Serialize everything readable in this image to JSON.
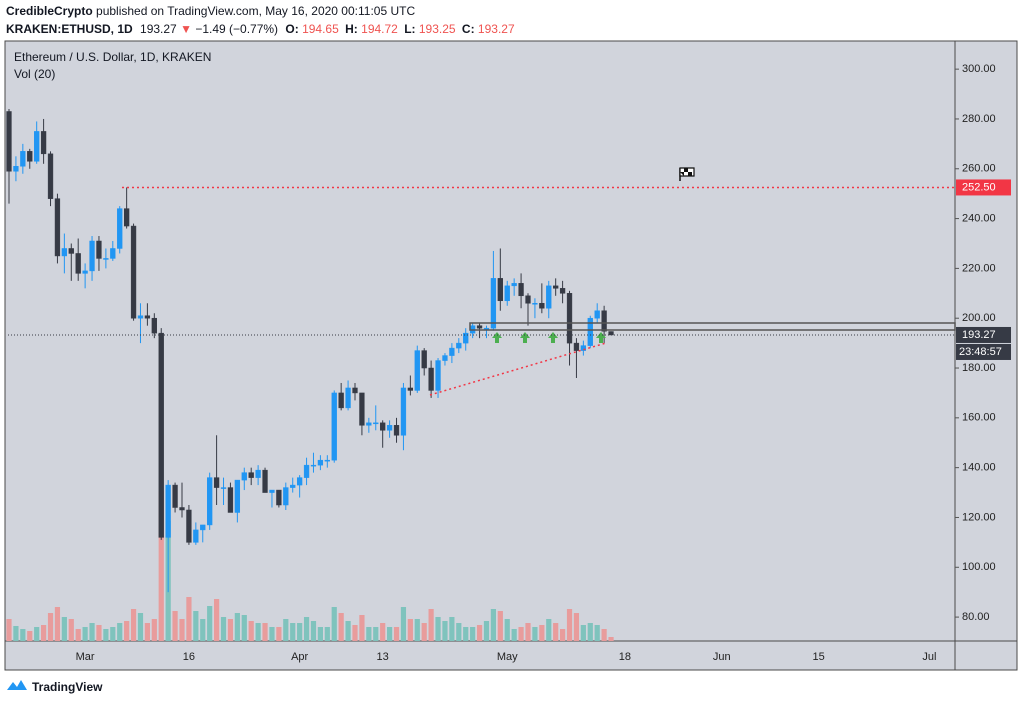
{
  "header": {
    "author": "CredibleCrypto",
    "published": "published on TradingView.com, May 16, 2020 00:11:05 UTC",
    "symbol": "KRAKEN:ETHUSD, 1D",
    "last": 193.27,
    "arrow": "▼",
    "change": "−1.49 (−0.77%)",
    "fields": [
      {
        "label": "O:",
        "value": 194.65
      },
      {
        "label": "H:",
        "value": 194.72
      },
      {
        "label": "L:",
        "value": 193.25
      },
      {
        "label": "C:",
        "value": 193.27
      }
    ]
  },
  "footer": {
    "brand": "TradingView"
  },
  "chart_data": {
    "type": "candlestick",
    "title": "Ethereum / U.S. Dollar, 1D, KRAKEN",
    "categories": [
      null,
      null,
      null,
      null,
      null,
      null,
      null,
      null,
      null,
      null,
      null,
      "Mar",
      null,
      null,
      null,
      null,
      null,
      null,
      null,
      null,
      null,
      null,
      null,
      null,
      null,
      null,
      "16",
      null,
      null,
      null,
      null,
      null,
      null,
      null,
      null,
      null,
      null,
      null,
      null,
      null,
      null,
      null,
      "Apr",
      null,
      null,
      null,
      null,
      null,
      null,
      null,
      null,
      null,
      null,
      null,
      "13",
      null,
      null,
      null,
      null,
      null,
      null,
      null,
      null,
      null,
      null,
      null,
      null,
      null,
      null,
      null,
      null,
      null,
      "May",
      null,
      null,
      null,
      null,
      null,
      null,
      null,
      null,
      null,
      null,
      null,
      null,
      null,
      null,
      null,
      null,
      "18",
      null,
      null,
      null,
      null,
      null,
      null,
      null,
      null,
      null,
      null,
      null,
      null,
      null,
      "Jun",
      null,
      null,
      null,
      null,
      null,
      null,
      null,
      null,
      null,
      null,
      null,
      null,
      null,
      "15",
      null,
      null,
      null,
      null,
      null,
      null,
      null,
      null,
      null,
      null,
      null,
      null,
      null,
      null,
      null,
      "Jul",
      null,
      null,
      null
    ],
    "open": [
      283,
      259,
      261,
      267,
      263,
      275,
      266,
      248,
      225,
      228,
      226,
      218,
      219,
      231,
      224,
      224,
      228,
      244,
      237,
      200,
      201,
      200,
      194,
      112,
      133,
      124,
      123,
      110,
      115,
      117,
      136,
      132,
      132,
      122,
      135,
      138,
      136,
      139,
      130,
      131,
      125,
      132,
      133,
      136,
      141,
      141,
      143,
      143,
      170,
      164,
      172,
      170,
      157,
      158,
      158,
      155,
      157,
      153,
      172,
      171,
      187,
      180,
      171,
      183,
      185,
      188,
      190,
      194,
      197,
      196,
      196,
      216,
      207,
      213,
      214,
      209,
      206,
      206,
      204,
      213,
      212,
      210,
      190,
      187,
      189,
      200,
      203,
      194.65,
      null,
      null,
      null,
      null,
      null,
      null,
      null,
      null,
      null,
      null,
      null,
      null,
      null,
      null,
      null,
      null,
      null,
      null,
      null,
      null,
      null,
      null,
      null,
      null,
      null,
      null,
      null,
      null,
      null,
      null,
      null,
      null,
      null,
      null,
      null,
      null,
      null,
      null,
      null,
      null,
      null,
      null,
      null,
      null,
      null,
      null,
      null,
      null,
      null
    ],
    "high": [
      284,
      265,
      270,
      268,
      279,
      280,
      267,
      250,
      234,
      230,
      232,
      222,
      233,
      233,
      228,
      231,
      245,
      252.5,
      238,
      206,
      206,
      202,
      196,
      135,
      134,
      134,
      125,
      118,
      117,
      138,
      153,
      136,
      134,
      135,
      140,
      140,
      141,
      140,
      131,
      131,
      134,
      136,
      137,
      144,
      146,
      145,
      145,
      171,
      174,
      175,
      174,
      170,
      160,
      165,
      159,
      159,
      160,
      174,
      177,
      189,
      188,
      183,
      184,
      186,
      190,
      192,
      196,
      198,
      198,
      197,
      227,
      228,
      215,
      216,
      218,
      210,
      208,
      214,
      215,
      216,
      215,
      211,
      192,
      191,
      201,
      206,
      205,
      194.72,
      null,
      null,
      null,
      null,
      null,
      null,
      null,
      null,
      null,
      null,
      null,
      null,
      null,
      null,
      null,
      null,
      null,
      null,
      null,
      null,
      null,
      null,
      null,
      null,
      null,
      null,
      null,
      null,
      null,
      null,
      null,
      null,
      null,
      null,
      null,
      null,
      null,
      null,
      null,
      null,
      null,
      null,
      null,
      null,
      null,
      null,
      null,
      null,
      null
    ],
    "low": [
      246,
      255,
      258,
      260,
      262,
      262,
      245,
      222,
      218,
      215,
      215,
      212,
      215,
      219,
      220,
      223,
      226,
      236,
      199,
      190,
      197,
      192,
      111,
      90,
      122,
      120,
      109,
      109,
      110,
      115,
      125,
      125,
      122,
      118,
      131,
      133,
      133,
      130,
      124,
      124,
      123,
      130,
      128,
      133,
      138,
      139,
      140,
      142,
      163,
      163,
      167,
      153,
      154,
      155,
      148,
      152,
      150,
      147,
      169,
      170,
      177,
      168,
      168,
      181,
      182,
      186,
      187,
      192,
      192,
      192,
      195,
      203,
      205,
      209,
      204,
      197,
      200,
      202,
      200,
      209,
      206,
      181,
      176,
      185,
      188,
      198,
      190,
      193.25,
      null,
      null,
      null,
      null,
      null,
      null,
      null,
      null,
      null,
      null,
      null,
      null,
      null,
      null,
      null,
      null,
      null,
      null,
      null,
      null,
      null,
      null,
      null,
      null,
      null,
      null,
      null,
      null,
      null,
      null,
      null,
      null,
      null,
      null,
      null,
      null,
      null,
      null,
      null,
      null,
      null,
      null,
      null,
      null,
      null,
      null,
      null,
      null,
      null
    ],
    "close": [
      259,
      261,
      267,
      263,
      275,
      266,
      248,
      225,
      228,
      226,
      218,
      219,
      231,
      224,
      224,
      228,
      244,
      237,
      200,
      201,
      200,
      194,
      112,
      133,
      124,
      123,
      110,
      115,
      117,
      136,
      132,
      132,
      122,
      135,
      138,
      136,
      139,
      130,
      131,
      125,
      132,
      133,
      136,
      141,
      141,
      143,
      143,
      170,
      164,
      172,
      170,
      157,
      158,
      158,
      155,
      157,
      153,
      172,
      171,
      187,
      180,
      171,
      183,
      185,
      188,
      190,
      194,
      197,
      196,
      196,
      216,
      207,
      213,
      214,
      209,
      206,
      206,
      204,
      213,
      212,
      210,
      190,
      187,
      189,
      200,
      203,
      194.76,
      193.27,
      null,
      null,
      null,
      null,
      null,
      null,
      null,
      null,
      null,
      null,
      null,
      null,
      null,
      null,
      null,
      null,
      null,
      null,
      null,
      null,
      null,
      null,
      null,
      null,
      null,
      null,
      null,
      null,
      null,
      null,
      null,
      null,
      null,
      null,
      null,
      null,
      null,
      null,
      null,
      null,
      null,
      null,
      null,
      null,
      null,
      null,
      null,
      null,
      null
    ],
    "up_color": "#2196f3",
    "down_color": "#363a45",
    "volume": {
      "name": "Vol (20)",
      "up_color": "#7fc3bd",
      "down_color": "#e89c9c",
      "values": [
        22,
        15,
        12,
        10,
        14,
        16,
        28,
        34,
        24,
        22,
        12,
        14,
        18,
        16,
        12,
        14,
        18,
        20,
        32,
        28,
        18,
        22,
        150,
        120,
        30,
        22,
        44,
        30,
        22,
        35,
        42,
        24,
        22,
        28,
        26,
        20,
        18,
        18,
        14,
        14,
        22,
        18,
        18,
        24,
        20,
        14,
        14,
        34,
        28,
        20,
        16,
        26,
        14,
        14,
        18,
        14,
        14,
        34,
        22,
        22,
        18,
        32,
        24,
        20,
        24,
        18,
        14,
        14,
        16,
        20,
        32,
        30,
        22,
        12,
        14,
        18,
        14,
        16,
        22,
        18,
        12,
        32,
        28,
        16,
        18,
        16,
        12,
        4,
        null,
        null,
        null,
        null,
        null,
        null,
        null,
        null,
        null,
        null,
        null,
        null,
        null,
        null,
        null,
        null,
        null,
        null,
        null,
        null,
        null,
        null,
        null,
        null,
        null,
        null,
        null,
        null,
        null,
        null,
        null,
        null,
        null,
        null,
        null,
        null,
        null,
        null,
        null,
        null,
        null,
        null,
        null,
        null,
        null,
        null,
        null,
        null,
        null
      ]
    },
    "ylim": [
      70.4,
      311.3
    ],
    "yticks": [
      {
        "value": 80,
        "label": "80.00"
      },
      {
        "value": 100,
        "label": "100.00"
      },
      {
        "value": 120,
        "label": "120.00"
      },
      {
        "value": 140,
        "label": "140.00"
      },
      {
        "value": 160,
        "label": "160.00"
      },
      {
        "value": 180,
        "label": "180.00"
      },
      {
        "value": 200,
        "label": "200.00"
      },
      {
        "value": 220,
        "label": "220.00"
      },
      {
        "value": 240,
        "label": "240.00"
      },
      {
        "value": 260,
        "label": "260.00"
      },
      {
        "value": 280,
        "label": "280.00"
      },
      {
        "value": 300,
        "label": "300.00"
      }
    ],
    "grid": false,
    "price_lines": [
      {
        "value": 252.5,
        "label": "252.50",
        "color": "#f23645"
      },
      {
        "value": 193.27,
        "label": "193.27",
        "color": "#363a45"
      }
    ],
    "countdown": "23:48:57"
  }
}
